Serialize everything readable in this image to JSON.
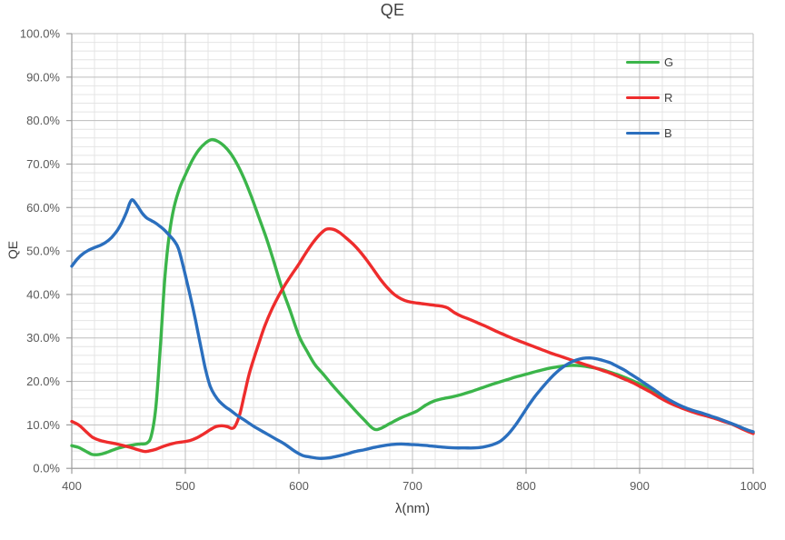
{
  "title": "QE",
  "x_axis": {
    "label": "λ(nm)",
    "tick_labels": [
      "400",
      "500",
      "600",
      "700",
      "800",
      "900",
      "1000"
    ]
  },
  "y_axis": {
    "label": "QE",
    "tick_labels": [
      "100.0%",
      "90.0%",
      "80.0%",
      "70.0%",
      "60.0%",
      "50.0%",
      "40.0%",
      "30.0%",
      "20.0%",
      "10.0%",
      "0.0%"
    ]
  },
  "colors": {
    "green_series": "#3bb54a",
    "red_series": "#ee2c2c",
    "blue_series": "#2b6fbe",
    "title_text": "#3f3f3f",
    "tick_text": "#595959",
    "legend_text": "#404040",
    "major_grid": "#bdbdbd",
    "minor_grid": "#e4e4e4",
    "axis_line": "#9c9c9c",
    "background": "#ffffff"
  },
  "chart_data": {
    "type": "line",
    "title": "QE",
    "xlabel": "λ(nm)",
    "ylabel": "QE",
    "xlim": [
      400,
      1000
    ],
    "ylim": [
      0,
      100
    ],
    "x_major_step": 100,
    "x_minor_step": 20,
    "y_major_step": 10,
    "y_minor_step": 2,
    "y_unit": "%",
    "grid": "major+minor",
    "legend_position": "top-right-inside",
    "series": [
      {
        "name": "G",
        "color": "#3bb54a",
        "points": [
          [
            400,
            5.2
          ],
          [
            406,
            4.8
          ],
          [
            412,
            4.0
          ],
          [
            418,
            3.2
          ],
          [
            424,
            3.2
          ],
          [
            430,
            3.6
          ],
          [
            438,
            4.4
          ],
          [
            446,
            5.0
          ],
          [
            454,
            5.4
          ],
          [
            460,
            5.6
          ],
          [
            466,
            5.8
          ],
          [
            470,
            7.5
          ],
          [
            474,
            14
          ],
          [
            478,
            28
          ],
          [
            482,
            44
          ],
          [
            486,
            54
          ],
          [
            490,
            60
          ],
          [
            495,
            64.5
          ],
          [
            500,
            67.5
          ],
          [
            506,
            70.8
          ],
          [
            512,
            73.3
          ],
          [
            518,
            74.9
          ],
          [
            523,
            75.6
          ],
          [
            528,
            75.3
          ],
          [
            534,
            74.2
          ],
          [
            540,
            72.4
          ],
          [
            546,
            69.8
          ],
          [
            552,
            66.5
          ],
          [
            558,
            62.6
          ],
          [
            564,
            58.3
          ],
          [
            571,
            53.2
          ],
          [
            578,
            47.5
          ],
          [
            585,
            41.5
          ],
          [
            592,
            36.5
          ],
          [
            600,
            30.5
          ],
          [
            607,
            27.0
          ],
          [
            614,
            23.9
          ],
          [
            621,
            21.8
          ],
          [
            628,
            19.6
          ],
          [
            635,
            17.5
          ],
          [
            643,
            15.2
          ],
          [
            651,
            12.9
          ],
          [
            658,
            11.0
          ],
          [
            664,
            9.4
          ],
          [
            668,
            8.9
          ],
          [
            673,
            9.3
          ],
          [
            680,
            10.3
          ],
          [
            688,
            11.4
          ],
          [
            696,
            12.3
          ],
          [
            704,
            13.2
          ],
          [
            712,
            14.6
          ],
          [
            719,
            15.5
          ],
          [
            726,
            16.0
          ],
          [
            734,
            16.4
          ],
          [
            742,
            16.9
          ],
          [
            752,
            17.7
          ],
          [
            762,
            18.6
          ],
          [
            772,
            19.5
          ],
          [
            782,
            20.3
          ],
          [
            792,
            21.1
          ],
          [
            802,
            21.8
          ],
          [
            812,
            22.5
          ],
          [
            822,
            23.1
          ],
          [
            832,
            23.5
          ],
          [
            840,
            23.7
          ],
          [
            848,
            23.6
          ],
          [
            856,
            23.3
          ],
          [
            864,
            22.9
          ],
          [
            872,
            22.3
          ],
          [
            880,
            21.6
          ],
          [
            888,
            20.8
          ],
          [
            896,
            19.9
          ],
          [
            904,
            18.9
          ],
          [
            912,
            17.7
          ],
          [
            920,
            16.4
          ],
          [
            928,
            15.3
          ],
          [
            936,
            14.3
          ],
          [
            944,
            13.5
          ],
          [
            952,
            12.8
          ],
          [
            960,
            12.1
          ],
          [
            968,
            11.4
          ],
          [
            976,
            10.7
          ],
          [
            984,
            9.9
          ],
          [
            992,
            9.1
          ],
          [
            1000,
            8.2
          ]
        ]
      },
      {
        "name": "R",
        "color": "#ee2c2c",
        "points": [
          [
            400,
            10.8
          ],
          [
            406,
            10.0
          ],
          [
            412,
            8.6
          ],
          [
            418,
            7.2
          ],
          [
            424,
            6.5
          ],
          [
            430,
            6.1
          ],
          [
            438,
            5.7
          ],
          [
            446,
            5.2
          ],
          [
            452,
            4.8
          ],
          [
            458,
            4.3
          ],
          [
            464,
            3.9
          ],
          [
            468,
            4.0
          ],
          [
            474,
            4.4
          ],
          [
            480,
            5.0
          ],
          [
            486,
            5.5
          ],
          [
            492,
            5.9
          ],
          [
            498,
            6.1
          ],
          [
            504,
            6.4
          ],
          [
            510,
            7.0
          ],
          [
            516,
            7.9
          ],
          [
            522,
            8.9
          ],
          [
            527,
            9.6
          ],
          [
            532,
            9.8
          ],
          [
            537,
            9.6
          ],
          [
            541,
            9.2
          ],
          [
            544,
            9.8
          ],
          [
            548,
            12.5
          ],
          [
            552,
            17
          ],
          [
            556,
            21.5
          ],
          [
            560,
            25
          ],
          [
            565,
            29
          ],
          [
            570,
            32.8
          ],
          [
            576,
            36.5
          ],
          [
            582,
            39.6
          ],
          [
            588,
            42.3
          ],
          [
            594,
            44.7
          ],
          [
            600,
            47
          ],
          [
            606,
            49.5
          ],
          [
            612,
            51.8
          ],
          [
            618,
            53.7
          ],
          [
            624,
            55
          ],
          [
            630,
            55
          ],
          [
            636,
            54.2
          ],
          [
            642,
            52.9
          ],
          [
            648,
            51.5
          ],
          [
            654,
            49.8
          ],
          [
            660,
            47.8
          ],
          [
            666,
            45.6
          ],
          [
            672,
            43.4
          ],
          [
            678,
            41.5
          ],
          [
            684,
            40.0
          ],
          [
            690,
            39.0
          ],
          [
            696,
            38.4
          ],
          [
            702,
            38.1
          ],
          [
            708,
            37.9
          ],
          [
            714,
            37.7
          ],
          [
            720,
            37.5
          ],
          [
            726,
            37.3
          ],
          [
            731,
            36.9
          ],
          [
            737,
            35.8
          ],
          [
            743,
            35.0
          ],
          [
            750,
            34.3
          ],
          [
            758,
            33.4
          ],
          [
            766,
            32.5
          ],
          [
            774,
            31.5
          ],
          [
            782,
            30.6
          ],
          [
            790,
            29.7
          ],
          [
            798,
            28.9
          ],
          [
            806,
            28.1
          ],
          [
            814,
            27.3
          ],
          [
            822,
            26.5
          ],
          [
            830,
            25.8
          ],
          [
            838,
            25.1
          ],
          [
            846,
            24.4
          ],
          [
            854,
            23.7
          ],
          [
            862,
            23.0
          ],
          [
            870,
            22.3
          ],
          [
            878,
            21.5
          ],
          [
            886,
            20.6
          ],
          [
            894,
            19.7
          ],
          [
            902,
            18.6
          ],
          [
            910,
            17.5
          ],
          [
            918,
            16.2
          ],
          [
            926,
            15.1
          ],
          [
            934,
            14.2
          ],
          [
            942,
            13.4
          ],
          [
            950,
            12.7
          ],
          [
            958,
            12.1
          ],
          [
            966,
            11.5
          ],
          [
            974,
            10.8
          ],
          [
            982,
            10.1
          ],
          [
            990,
            9.1
          ],
          [
            1000,
            8.0
          ]
        ]
      },
      {
        "name": "B",
        "color": "#2b6fbe",
        "points": [
          [
            400,
            46.5
          ],
          [
            405,
            48.2
          ],
          [
            410,
            49.4
          ],
          [
            415,
            50.2
          ],
          [
            420,
            50.8
          ],
          [
            425,
            51.3
          ],
          [
            430,
            52.0
          ],
          [
            435,
            53.1
          ],
          [
            440,
            54.7
          ],
          [
            444,
            56.5
          ],
          [
            448,
            58.8
          ],
          [
            451,
            61.0
          ],
          [
            453,
            61.8
          ],
          [
            455,
            61.4
          ],
          [
            458,
            60.3
          ],
          [
            462,
            58.7
          ],
          [
            466,
            57.6
          ],
          [
            470,
            57.0
          ],
          [
            474,
            56.4
          ],
          [
            478,
            55.6
          ],
          [
            482,
            54.7
          ],
          [
            486,
            53.6
          ],
          [
            490,
            52.4
          ],
          [
            494,
            50.5
          ],
          [
            499,
            45.5
          ],
          [
            504,
            40
          ],
          [
            509,
            34
          ],
          [
            514,
            27.5
          ],
          [
            518,
            22.5
          ],
          [
            522,
            18.8
          ],
          [
            526,
            16.8
          ],
          [
            530,
            15.4
          ],
          [
            535,
            14.2
          ],
          [
            540,
            13.3
          ],
          [
            546,
            12.1
          ],
          [
            552,
            11.1
          ],
          [
            560,
            9.7
          ],
          [
            570,
            8.2
          ],
          [
            580,
            6.7
          ],
          [
            588,
            5.5
          ],
          [
            596,
            4.0
          ],
          [
            603,
            3.0
          ],
          [
            610,
            2.6
          ],
          [
            618,
            2.3
          ],
          [
            626,
            2.4
          ],
          [
            634,
            2.8
          ],
          [
            642,
            3.3
          ],
          [
            650,
            3.9
          ],
          [
            658,
            4.3
          ],
          [
            666,
            4.8
          ],
          [
            674,
            5.2
          ],
          [
            682,
            5.5
          ],
          [
            690,
            5.6
          ],
          [
            698,
            5.5
          ],
          [
            706,
            5.4
          ],
          [
            714,
            5.2
          ],
          [
            722,
            5.0
          ],
          [
            730,
            4.8
          ],
          [
            738,
            4.7
          ],
          [
            746,
            4.7
          ],
          [
            754,
            4.7
          ],
          [
            762,
            4.9
          ],
          [
            770,
            5.4
          ],
          [
            777,
            6.2
          ],
          [
            784,
            7.8
          ],
          [
            790,
            9.7
          ],
          [
            796,
            12.0
          ],
          [
            802,
            14.4
          ],
          [
            808,
            16.6
          ],
          [
            814,
            18.5
          ],
          [
            820,
            20.3
          ],
          [
            826,
            21.9
          ],
          [
            832,
            23.2
          ],
          [
            838,
            24.2
          ],
          [
            844,
            24.9
          ],
          [
            850,
            25.3
          ],
          [
            856,
            25.4
          ],
          [
            862,
            25.2
          ],
          [
            868,
            24.8
          ],
          [
            874,
            24.3
          ],
          [
            880,
            23.5
          ],
          [
            886,
            22.7
          ],
          [
            892,
            21.7
          ],
          [
            898,
            20.7
          ],
          [
            906,
            19.3
          ],
          [
            914,
            17.9
          ],
          [
            922,
            16.4
          ],
          [
            930,
            15.2
          ],
          [
            938,
            14.2
          ],
          [
            946,
            13.4
          ],
          [
            954,
            12.8
          ],
          [
            962,
            12.1
          ],
          [
            970,
            11.4
          ],
          [
            978,
            10.6
          ],
          [
            986,
            9.8
          ],
          [
            994,
            8.9
          ],
          [
            1000,
            8.4
          ]
        ]
      }
    ]
  }
}
